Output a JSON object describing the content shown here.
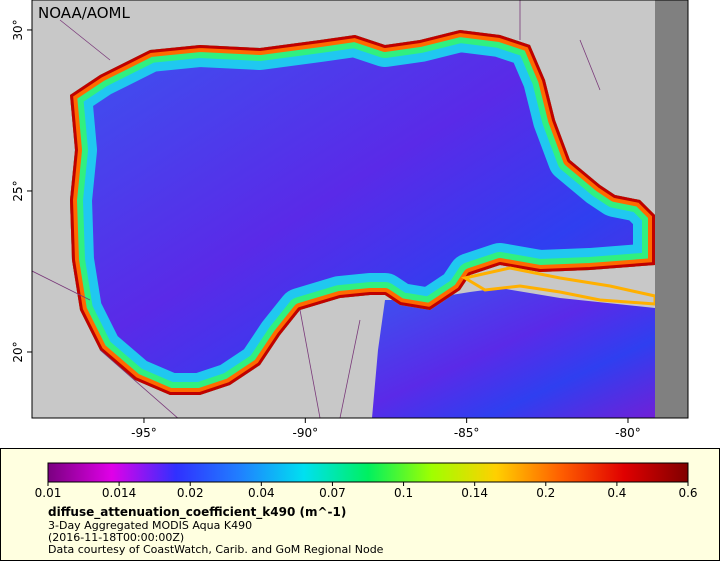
{
  "map": {
    "title": "NOAA/AOML",
    "xlim": [
      -98.47,
      -78.14
    ],
    "ylim": [
      17.95,
      30.93
    ],
    "xticks": [
      {
        "value": -95,
        "label": "-95°"
      },
      {
        "value": -90,
        "label": "-90°"
      },
      {
        "value": -85,
        "label": "-85°"
      },
      {
        "value": -80,
        "label": "-80°"
      }
    ],
    "yticks": [
      {
        "value": 20,
        "label": "20°"
      },
      {
        "value": 25,
        "label": "25°"
      },
      {
        "value": 30,
        "label": "30°"
      }
    ]
  },
  "colorbar": {
    "ticks": [
      0.01,
      0.014,
      0.02,
      0.04,
      0.07,
      0.1,
      0.14,
      0.2,
      0.4,
      0.6
    ],
    "colors": [
      "#7a0080",
      "#e000e8",
      "#3030ff",
      "#2080ff",
      "#00e0f0",
      "#00f060",
      "#a0ff00",
      "#ffd000",
      "#ff6000",
      "#e00000",
      "#800000"
    ]
  },
  "caption": {
    "variable": "diffuse_attenuation_coefficient_k490 (m^-1)",
    "product": "3-Day Aggregated MODIS Aqua K490",
    "time": "(2016-11-18T00:00:00Z)",
    "credit": "Data courtesy of CoastWatch, Carib. and GoM Regional Node"
  }
}
